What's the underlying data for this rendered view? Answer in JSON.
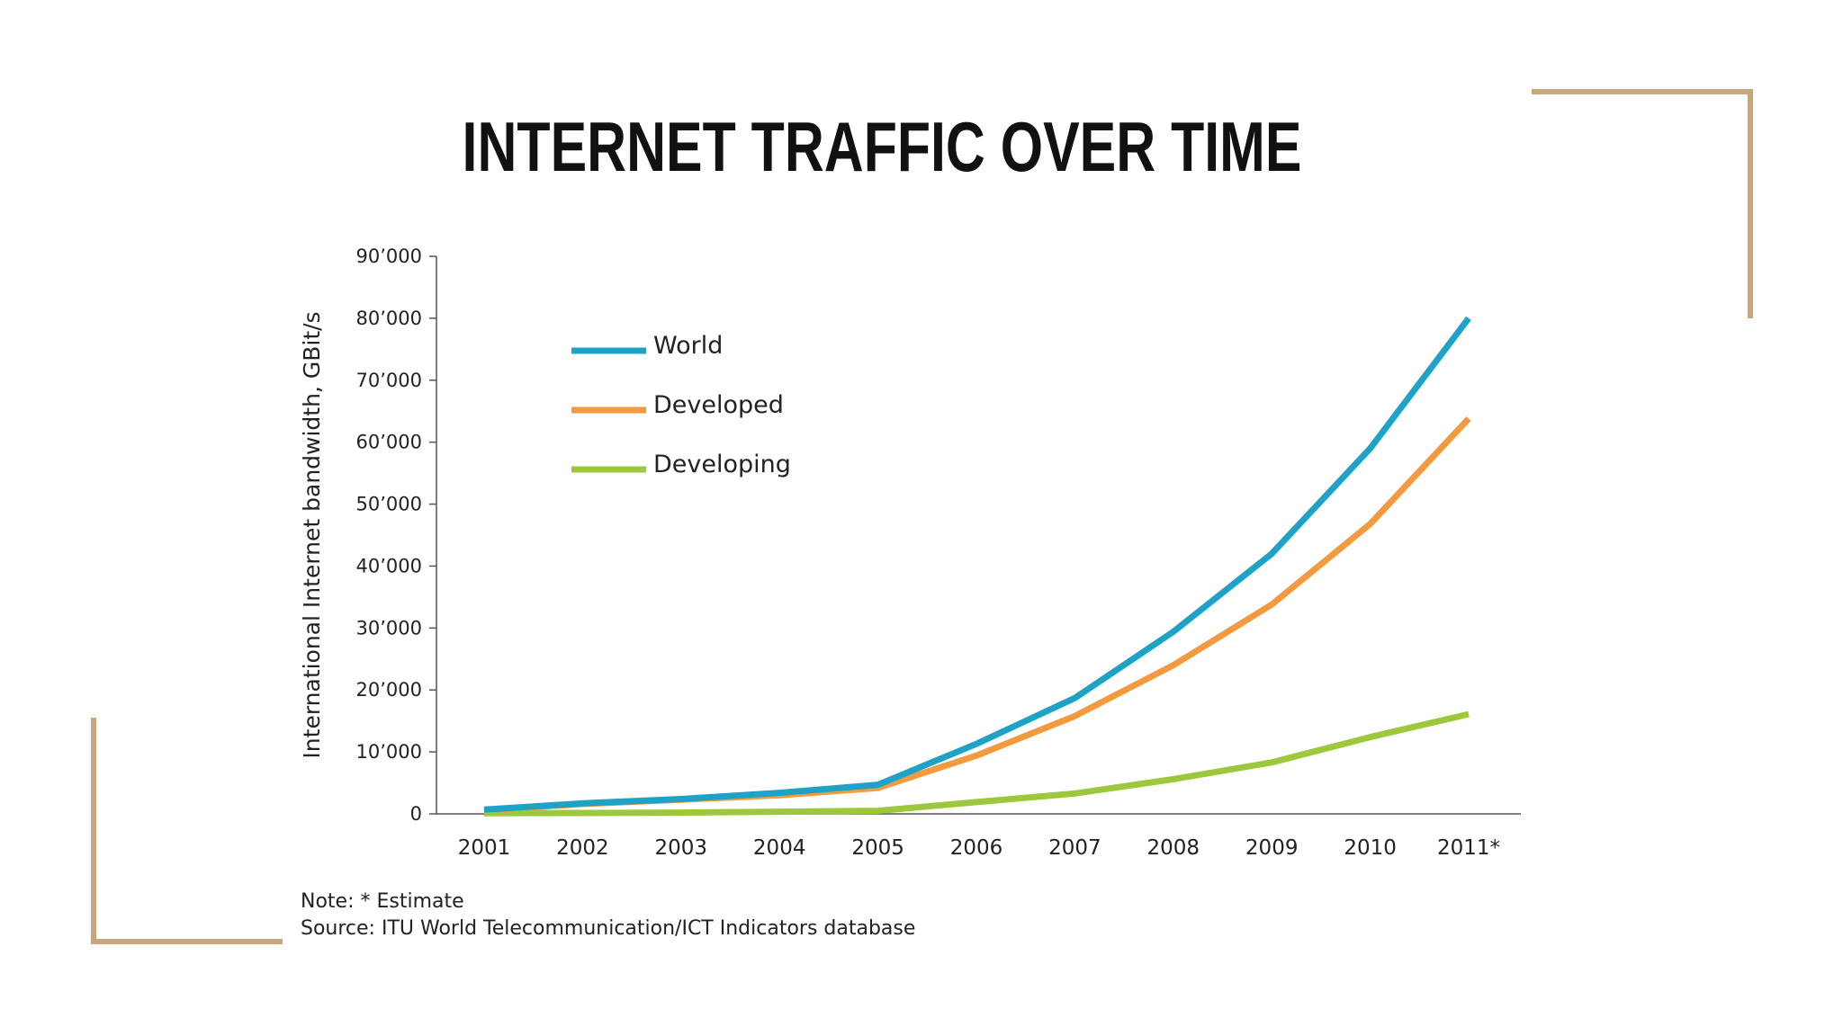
{
  "slide": {
    "title": "INTERNET TRAFFIC OVER TIME",
    "accent_color": "#c8a77e"
  },
  "chart_data": {
    "type": "line",
    "title": "",
    "xlabel": "",
    "ylabel": "International Internet bandwidth, GBit/s",
    "categories": [
      "2001",
      "2002",
      "2003",
      "2004",
      "2005",
      "2006",
      "2007",
      "2008",
      "2009",
      "2010",
      "2011*"
    ],
    "ylim": [
      0,
      90000
    ],
    "yticks": [
      0,
      10000,
      20000,
      30000,
      40000,
      50000,
      60000,
      70000,
      80000,
      90000
    ],
    "ytick_labels": [
      "0",
      "10’000",
      "20’000",
      "30’000",
      "40’000",
      "50’000",
      "60’000",
      "70’000",
      "80’000",
      "90’000"
    ],
    "legend_position": "top-left",
    "series": [
      {
        "name": "World",
        "color": "#1ea3c6",
        "values": [
          700,
          1700,
          2400,
          3400,
          4700,
          11300,
          18700,
          29400,
          42000,
          59000,
          80000
        ]
      },
      {
        "name": "Developed",
        "color": "#f39a3e",
        "values": [
          600,
          1600,
          2300,
          3000,
          4200,
          9400,
          15800,
          24000,
          33800,
          46800,
          63800
        ]
      },
      {
        "name": "Developing",
        "color": "#9dc83c",
        "values": [
          100,
          150,
          200,
          350,
          500,
          1900,
          3300,
          5600,
          8300,
          12400,
          16100
        ]
      }
    ],
    "notes": {
      "note": "Note: * Estimate",
      "source": "Source: ITU World Telecommunication/ICT Indicators database"
    }
  }
}
